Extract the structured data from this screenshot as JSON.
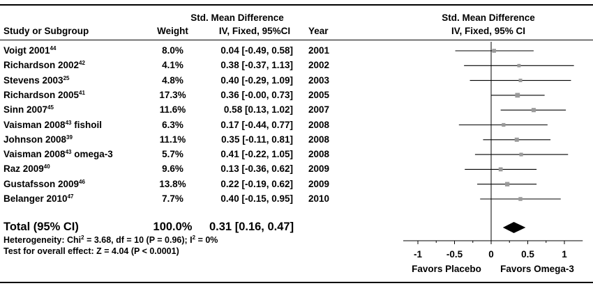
{
  "columns": {
    "smd_group": "Std. Mean Difference",
    "study": "Study or Subgroup",
    "weight": "Weight",
    "ci": "IV, Fixed, 95%CI",
    "year": "Year",
    "plot_group": "Std. Mean Difference",
    "plot_ci": "IV, Fixed, 95% CI"
  },
  "studies": [
    {
      "name": "Voigt 2001",
      "ref": "44",
      "suffix": "",
      "weight": "8.0%",
      "ci_text": "0.04 [-0.49, 0.58]",
      "year": "2001"
    },
    {
      "name": "Richardson 2002",
      "ref": "42",
      "suffix": "",
      "weight": "4.1%",
      "ci_text": "0.38 [-0.37, 1.13]",
      "year": "2002"
    },
    {
      "name": "Stevens 2003",
      "ref": "25",
      "suffix": "",
      "weight": "4.8%",
      "ci_text": "0.40 [-0.29, 1.09]",
      "year": "2003"
    },
    {
      "name": "Richardson 2005",
      "ref": "41",
      "suffix": "",
      "weight": "17.3%",
      "ci_text": "0.36 [-0.00, 0.73]",
      "year": "2005"
    },
    {
      "name": "Sinn 2007",
      "ref": "45",
      "suffix": "",
      "weight": "11.6%",
      "ci_text": "0.58 [0.13, 1.02]",
      "year": "2007"
    },
    {
      "name": "Vaisman 2008",
      "ref": "43",
      "suffix": " fishoil",
      "weight": "6.3%",
      "ci_text": "0.17 [-0.44, 0.77]",
      "year": "2008"
    },
    {
      "name": "Johnson 2008",
      "ref": "39",
      "suffix": "",
      "weight": "11.1%",
      "ci_text": "0.35 [-0.11, 0.81]",
      "year": "2008"
    },
    {
      "name": "Vaisman 2008",
      "ref": "43",
      "suffix": " omega-3",
      "weight": "5.7%",
      "ci_text": "0.41 [-0.22, 1.05]",
      "year": "2008"
    },
    {
      "name": "Raz 2009",
      "ref": "40",
      "suffix": "",
      "weight": "9.6%",
      "ci_text": "0.13 [-0.36, 0.62]",
      "year": "2009"
    },
    {
      "name": "Gustafsson 2009",
      "ref": "46",
      "suffix": "",
      "weight": "13.8%",
      "ci_text": "0.22 [-0.19, 0.62]",
      "year": "2009"
    },
    {
      "name": "Belanger 2010",
      "ref": "47",
      "suffix": "",
      "weight": "7.7%",
      "ci_text": "0.40 [-0.15, 0.95]",
      "year": "2010"
    }
  ],
  "total": {
    "label": "Total (95% CI)",
    "weight": "100.0%",
    "ci_text": "0.31 [0.16, 0.47]",
    "heterogeneity_pre": "Heterogeneity: Chi",
    "heterogeneity_sup": "2",
    "heterogeneity_mid": " = 3.68, df = 10 (P = 0.96); I",
    "heterogeneity_sup2": "2",
    "heterogeneity_post": " = 0%",
    "overall_effect": "Test for overall effect: Z = 4.04 (P < 0.0001)"
  },
  "chart_data": {
    "type": "forest",
    "title": "Std. Mean Difference",
    "subtitle": "IV, Fixed, 95% CI",
    "xlim": [
      -1.2,
      1.25
    ],
    "xticks": [
      -1,
      -0.5,
      0,
      0.5,
      1
    ],
    "xtick_labels": [
      "-1",
      "-0.5",
      "0",
      "0.5",
      "1"
    ],
    "xlabel_left": "Favors Placebo",
    "xlabel_right": "Favors Omega-3",
    "studies": [
      {
        "label": "Voigt 2001",
        "estimate": 0.04,
        "lower": -0.49,
        "upper": 0.58,
        "weight": 8.0
      },
      {
        "label": "Richardson 2002",
        "estimate": 0.38,
        "lower": -0.37,
        "upper": 1.13,
        "weight": 4.1
      },
      {
        "label": "Stevens 2003",
        "estimate": 0.4,
        "lower": -0.29,
        "upper": 1.09,
        "weight": 4.8
      },
      {
        "label": "Richardson 2005",
        "estimate": 0.36,
        "lower": -0.0,
        "upper": 0.73,
        "weight": 17.3
      },
      {
        "label": "Sinn 2007",
        "estimate": 0.58,
        "lower": 0.13,
        "upper": 1.02,
        "weight": 11.6
      },
      {
        "label": "Vaisman 2008 fishoil",
        "estimate": 0.17,
        "lower": -0.44,
        "upper": 0.77,
        "weight": 6.3
      },
      {
        "label": "Johnson 2008",
        "estimate": 0.35,
        "lower": -0.11,
        "upper": 0.81,
        "weight": 11.1
      },
      {
        "label": "Vaisman 2008 omega-3",
        "estimate": 0.41,
        "lower": -0.22,
        "upper": 1.05,
        "weight": 5.7
      },
      {
        "label": "Raz 2009",
        "estimate": 0.13,
        "lower": -0.36,
        "upper": 0.62,
        "weight": 9.6
      },
      {
        "label": "Gustafsson 2009",
        "estimate": 0.22,
        "lower": -0.19,
        "upper": 0.62,
        "weight": 13.8
      },
      {
        "label": "Belanger 2010",
        "estimate": 0.4,
        "lower": -0.15,
        "upper": 0.95,
        "weight": 7.7
      }
    ],
    "pooled": {
      "label": "Total (95% CI)",
      "estimate": 0.31,
      "lower": 0.16,
      "upper": 0.47
    },
    "colors": {
      "line": "#000000",
      "marker": "#9a9a9a",
      "diamond": "#000000"
    }
  }
}
